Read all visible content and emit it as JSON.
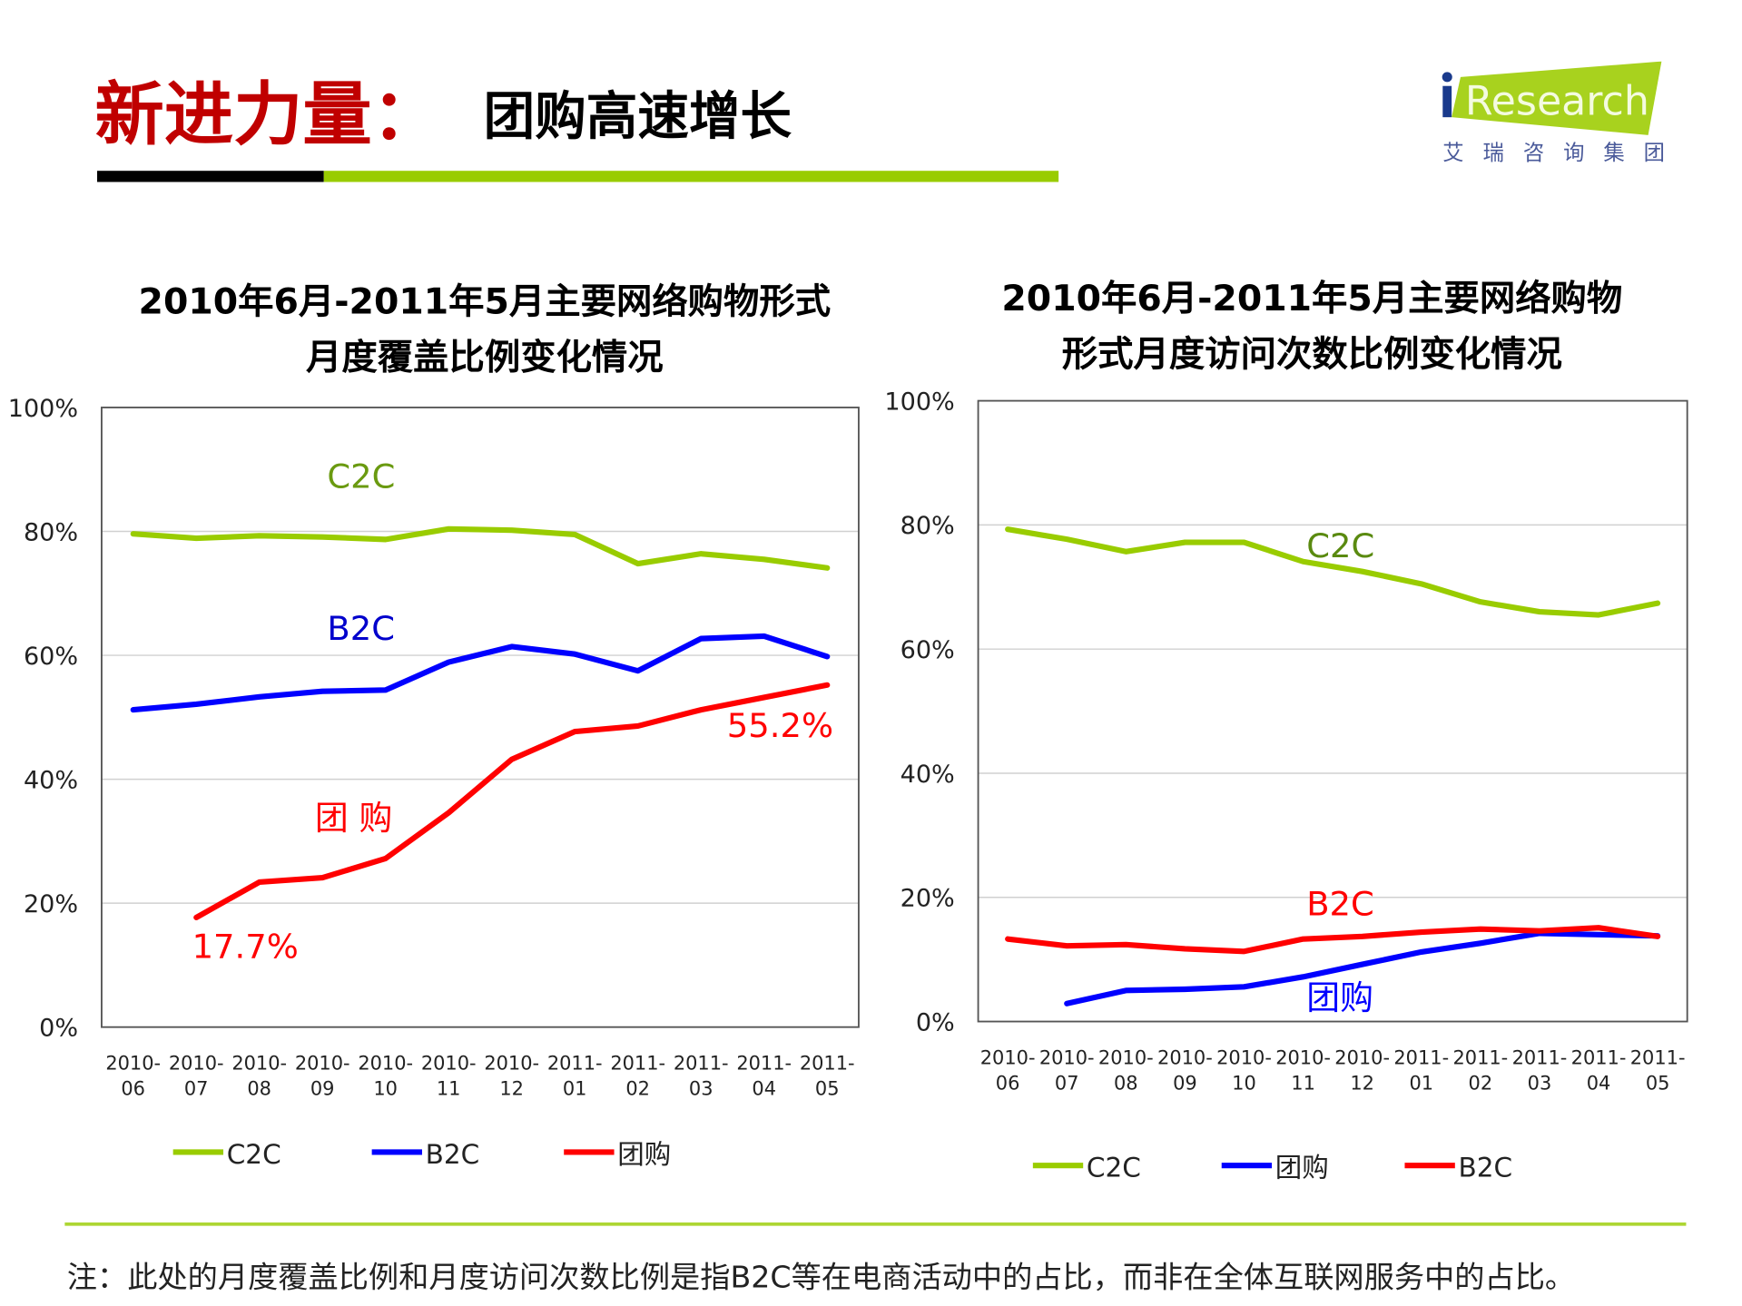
{
  "header": {
    "title_main": "新进力量：",
    "title_sub": "团购高速增长",
    "logo_text": "iResearch",
    "logo_subtext": "艾瑞咨询集团"
  },
  "colors": {
    "title_red": "#c00000",
    "accent_green": "#99cc00",
    "c2c": "#99cc00",
    "b2c_left": "#0000ff",
    "groupbuy_left": "#ff0000"
  },
  "chart_data": [
    {
      "type": "line",
      "title": [
        "2010年6月-2011年5月主要网络购物形式",
        "月度覆盖比例变化情况"
      ],
      "categories": [
        "2010-06",
        "2010-07",
        "2010-08",
        "2010-09",
        "2010-10",
        "2010-11",
        "2010-12",
        "2011-01",
        "2011-02",
        "2011-03",
        "2011-04",
        "2011-05"
      ],
      "ylim": [
        0,
        100
      ],
      "yticks": [
        "0%",
        "20%",
        "40%",
        "60%",
        "80%",
        "100%"
      ],
      "grid": true,
      "legend_placement": "bottom",
      "series": [
        {
          "name": "C2C",
          "color": "#99cc00",
          "values": [
            79.6,
            78.9,
            79.3,
            79.1,
            78.7,
            80.4,
            80.2,
            79.5,
            74.8,
            76.4,
            75.5,
            74.1
          ]
        },
        {
          "name": "B2C",
          "color": "#0000ff",
          "values": [
            51.2,
            52.1,
            53.3,
            54.2,
            54.4,
            58.9,
            61.4,
            60.2,
            57.5,
            62.7,
            63.1,
            59.8
          ]
        },
        {
          "name": "团购",
          "color": "#ff0000",
          "values": [
            null,
            17.7,
            23.4,
            24.1,
            27.2,
            34.6,
            43.2,
            47.7,
            48.6,
            51.2,
            53.2,
            55.2
          ]
        }
      ],
      "annotations": {
        "c2c": "C2C",
        "b2c": "B2C",
        "groupbuy": "团 购",
        "start": "17.7%",
        "end": "55.2%"
      }
    },
    {
      "type": "line",
      "title": [
        "2010年6月-2011年5月主要网络购物",
        "形式月度访问次数比例变化情况"
      ],
      "categories": [
        "2010-06",
        "2010-07",
        "2010-08",
        "2010-09",
        "2010-10",
        "2010-11",
        "2010-12",
        "2011-01",
        "2011-02",
        "2011-03",
        "2011-04",
        "2011-05"
      ],
      "ylim": [
        0,
        100
      ],
      "yticks": [
        "0%",
        "20%",
        "40%",
        "60%",
        "80%",
        "100%"
      ],
      "grid": true,
      "legend_placement": "bottom",
      "series": [
        {
          "name": "C2C",
          "color": "#99cc00",
          "values": [
            79.3,
            77.7,
            75.7,
            77.2,
            77.2,
            74.1,
            72.5,
            70.5,
            67.6,
            66.0,
            65.5,
            67.4
          ]
        },
        {
          "name": "团购",
          "color": "#0000ff",
          "values": [
            null,
            2.9,
            5.0,
            5.2,
            5.6,
            7.2,
            9.2,
            11.2,
            12.6,
            14.2,
            14.0,
            13.8
          ]
        },
        {
          "name": "B2C",
          "color": "#ff0000",
          "values": [
            13.3,
            12.2,
            12.4,
            11.7,
            11.3,
            13.3,
            13.7,
            14.4,
            14.9,
            14.6,
            15.1,
            13.7
          ]
        }
      ],
      "annotations": {
        "c2c": "C2C",
        "b2c": "B2C",
        "groupbuy": "团购"
      }
    }
  ],
  "footer": {
    "note": "注：此处的月度覆盖比例和月度访问次数比例是指B2C等在电商活动中的占比，而非在全体互联网服务中的占比。"
  }
}
